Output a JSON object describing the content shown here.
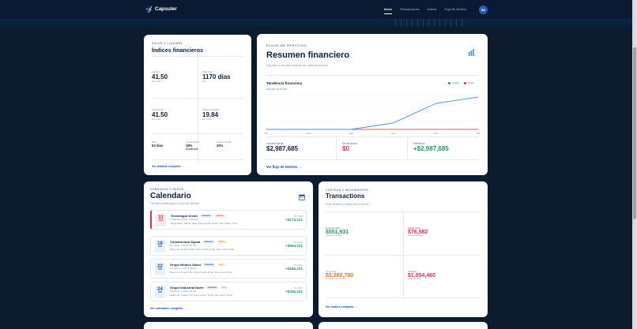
{
  "app": {
    "name": "Capsuler",
    "avatar": "BN"
  },
  "nav": [
    "Inicio",
    "Transacciones",
    "Índices",
    "Flujo de efectivo"
  ],
  "indices": {
    "eyebrow": "SALUD Y LIQUIDEZ",
    "title": "Índices financieros",
    "kpis": [
      {
        "label": "Liquidez",
        "value": "41.50",
        "sub": "Muy sólido"
      },
      {
        "label": "Rotamiento",
        "value": "1170 días",
        "sub": "Alto"
      },
      {
        "label": "Prueba ácida",
        "value": "41.50",
        "sub": "Muy sólido"
      },
      {
        "label": "Riesgo de efectivo",
        "value": "19.84",
        "sub": "Muy sólido"
      }
    ],
    "small": [
      {
        "label": "DSO",
        "value": "53 días",
        "sub": ""
      },
      {
        "label": "Concentración",
        "value": "18%",
        "sub": "Moderada"
      },
      {
        "label": "Cartera vencida",
        "value": "32%",
        "sub": ""
      }
    ],
    "link": "Ver análisis completo"
  },
  "summary": {
    "eyebrow": "FLUJO DE EFECTIVO",
    "title": "Resumen financiero",
    "subtitle": "Liquidez y deuda durante los últimos meses.",
    "chart_title": "Tendencia financiera",
    "chart_subtitle": "Liquidez vs Deuda",
    "stats": [
      {
        "label": "Liquidez actual",
        "value": "$2,987,685",
        "color": "#0d1f3c"
      },
      {
        "label": "Deuda actual",
        "value": "$0",
        "color": "#d8344a"
      },
      {
        "label": "Diferencia",
        "value": "+$2,987,685",
        "color": "#1f9a5a"
      }
    ],
    "link": "Ver flujo de efectivo",
    "icon": "bar-chart-icon"
  },
  "chart_data": {
    "type": "line",
    "title": "Tendencia financiera",
    "subtitle": "Liquidez vs Deuda",
    "categories": [
      "JUL",
      "AGO",
      "SEP",
      "OCT",
      "NOV",
      "DIC"
    ],
    "series": [
      {
        "name": "Liquidez",
        "color": "#3f8fd8",
        "values": [
          0,
          0,
          0,
          597537,
          2390148,
          2987685
        ]
      },
      {
        "name": "Deuda",
        "color": "#e05a6a",
        "values": [
          0,
          0,
          0,
          0,
          0,
          0
        ]
      }
    ],
    "ylim": [
      0,
      3200000
    ],
    "grid": true,
    "legend": "top-right"
  },
  "calendar": {
    "eyebrow": "COBRANZA Y PAGOS",
    "title": "Calendario",
    "subtitle": "Fechas críticas para tu flujo de efectivo",
    "items": [
      {
        "day": "31",
        "month": "MAR",
        "company": "Tecnología Vector",
        "badge1": "PENDIENTE",
        "badge2": "VENCIDO",
        "info": "Cobranza vencida · 9 facturas",
        "meta": "Riesgo: Medio · Rotación: Medio · Pago promedio: 36 días · Pdte. retraso: 77 días",
        "amount_label": "Por cobrar",
        "amount": "+$173,121",
        "urgent": true
      },
      {
        "day": "18",
        "month": "ABR",
        "company": "Constructora Sigma",
        "badge1": "PENDIENTE",
        "badge2": "CRÍTICO",
        "info": "Por cobrar · crédito a 30 días",
        "meta": "Riesgo: Alto · Rotación: Media · Pago promedio: 37 días · Pdte. retraso: 64 días",
        "amount_label": "Por cobrar",
        "amount": "+$584,101",
        "urgent": false
      },
      {
        "day": "22",
        "month": "ABR",
        "company": "Grupo Médico Salud",
        "badge1": "PENDIENTE",
        "badge2": "ALTO",
        "info": "Por cobrar · crédito a 30 días",
        "meta": "Riesgo: Alto · Rotación: Alta · Pago promedio: 30 días · Pdte. retraso: 36 días",
        "amount_label": "Por cobrar",
        "amount": "+$186,221",
        "urgent": false
      },
      {
        "day": "24",
        "month": "ABR",
        "company": "Grupo Industrial Norte",
        "badge1": "PENDIENTE",
        "badge2": "ALTO",
        "info": "Por cobrar · crédito a 30 días",
        "meta": "Riesgo: Alto · Rotación: Alta · Pago promedio: 32 días · Pdte. retraso: 30 días",
        "amount_label": "Por cobrar",
        "amount": "+$326,221",
        "urgent": false
      }
    ],
    "link": "Ver calendario completo",
    "icon": "calendar-icon"
  },
  "transactions": {
    "eyebrow": "CARTERA Y MOVIMIENTOS",
    "title": "Transactions",
    "subtitle": "Flujo reciente y estado de tu cartera",
    "boxes": [
      {
        "label": "Entradas 30d",
        "value": "$551,931",
        "sub": "Depósitos recibidos",
        "color": "#1f9a5a"
      },
      {
        "label": "Salidas 30d",
        "value": "$76,582",
        "sub": "Gastos realizados",
        "color": "#d8344a"
      },
      {
        "label": "Por cobrar",
        "value": "$3,260,780",
        "sub": "Pendientes de cobranza",
        "color": "#e07a1f"
      },
      {
        "label": "Vencido",
        "value": "$1,054,460",
        "sub": "Cartera vencida",
        "color": "#d8344a"
      }
    ],
    "link": "Ver cartera completa"
  }
}
